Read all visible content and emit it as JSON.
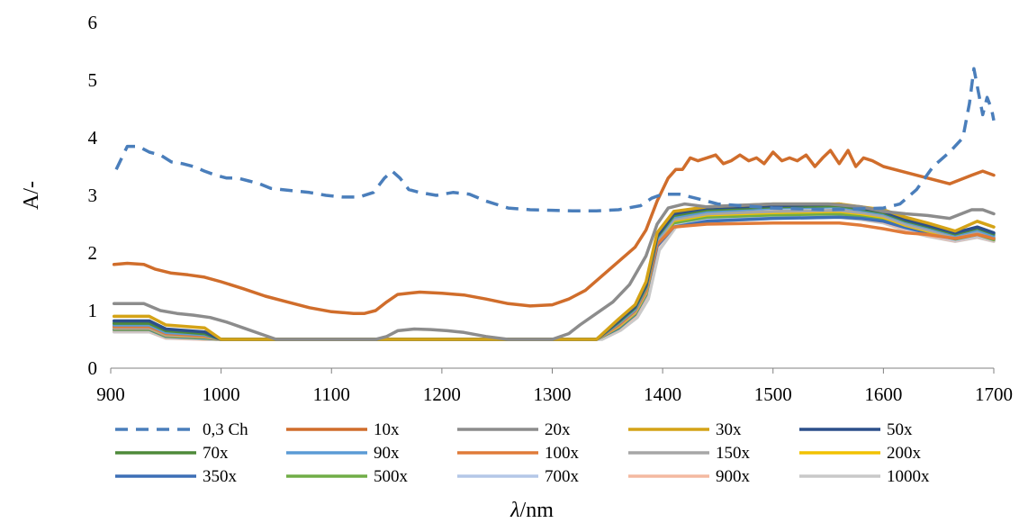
{
  "chart_data": {
    "type": "line",
    "title": "",
    "xlabel_var": "λ",
    "xlabel_unit": "/nm",
    "ylabel": "A/-",
    "xlim": [
      900,
      1700
    ],
    "ylim": [
      0,
      6
    ],
    "xticks": [
      900,
      1000,
      1100,
      1200,
      1300,
      1400,
      1500,
      1600,
      1700
    ],
    "yticks": [
      0,
      1,
      2,
      3,
      4,
      5,
      6
    ],
    "grid": false,
    "legend_position": "bottom",
    "series": [
      {
        "name": "0,3 Ch",
        "color": "#4a7ebb",
        "dash": true,
        "x": [
          905,
          915,
          925,
          935,
          945,
          955,
          965,
          975,
          985,
          995,
          1005,
          1015,
          1025,
          1035,
          1045,
          1055,
          1065,
          1080,
          1095,
          1110,
          1125,
          1138,
          1148,
          1155,
          1162,
          1170,
          1180,
          1195,
          1210,
          1225,
          1240,
          1260,
          1280,
          1300,
          1320,
          1340,
          1360,
          1380,
          1390,
          1400,
          1415,
          1430,
          1450,
          1500,
          1550,
          1600,
          1615,
          1630,
          1645,
          1660,
          1672,
          1678,
          1682,
          1686,
          1690,
          1694,
          1698,
          1700
        ],
        "y": [
          3.45,
          3.85,
          3.85,
          3.75,
          3.7,
          3.58,
          3.55,
          3.5,
          3.42,
          3.35,
          3.3,
          3.3,
          3.25,
          3.2,
          3.12,
          3.1,
          3.08,
          3.05,
          3.0,
          2.97,
          2.97,
          3.05,
          3.3,
          3.42,
          3.3,
          3.1,
          3.05,
          3.0,
          3.05,
          3.02,
          2.9,
          2.78,
          2.75,
          2.74,
          2.73,
          2.73,
          2.75,
          2.82,
          2.95,
          3.02,
          3.02,
          2.95,
          2.85,
          2.78,
          2.75,
          2.78,
          2.85,
          3.1,
          3.5,
          3.75,
          4.0,
          4.6,
          5.2,
          4.8,
          4.4,
          4.7,
          4.5,
          4.3
        ]
      },
      {
        "name": "10x",
        "color": "#d06d2b",
        "x": [
          903,
          915,
          930,
          940,
          955,
          970,
          985,
          1000,
          1020,
          1040,
          1060,
          1080,
          1100,
          1120,
          1130,
          1140,
          1150,
          1160,
          1170,
          1180,
          1200,
          1220,
          1240,
          1260,
          1280,
          1300,
          1315,
          1330,
          1345,
          1360,
          1375,
          1385,
          1395,
          1405,
          1412,
          1418,
          1425,
          1432,
          1440,
          1448,
          1455,
          1462,
          1470,
          1478,
          1485,
          1492,
          1500,
          1508,
          1515,
          1522,
          1530,
          1538,
          1545,
          1552,
          1560,
          1568,
          1575,
          1582,
          1590,
          1600,
          1620,
          1640,
          1660,
          1680,
          1690,
          1700
        ],
        "y": [
          1.8,
          1.82,
          1.8,
          1.72,
          1.65,
          1.62,
          1.58,
          1.5,
          1.38,
          1.25,
          1.15,
          1.05,
          0.98,
          0.95,
          0.95,
          1.0,
          1.15,
          1.28,
          1.3,
          1.32,
          1.3,
          1.27,
          1.2,
          1.12,
          1.08,
          1.1,
          1.2,
          1.35,
          1.6,
          1.85,
          2.1,
          2.4,
          2.9,
          3.3,
          3.45,
          3.45,
          3.65,
          3.6,
          3.65,
          3.7,
          3.55,
          3.6,
          3.7,
          3.6,
          3.65,
          3.55,
          3.75,
          3.6,
          3.65,
          3.6,
          3.7,
          3.5,
          3.65,
          3.78,
          3.55,
          3.78,
          3.5,
          3.65,
          3.6,
          3.5,
          3.4,
          3.3,
          3.2,
          3.35,
          3.42,
          3.35
        ]
      },
      {
        "name": "20x",
        "color": "#8c8c8c",
        "x": [
          903,
          915,
          930,
          945,
          960,
          975,
          990,
          1005,
          1020,
          1035,
          1050,
          1140,
          1150,
          1160,
          1175,
          1190,
          1205,
          1220,
          1240,
          1260,
          1300,
          1315,
          1325,
          1340,
          1355,
          1370,
          1385,
          1395,
          1405,
          1420,
          1440,
          1460,
          1500,
          1550,
          1580,
          1600,
          1620,
          1640,
          1660,
          1680,
          1690,
          1700
        ],
        "y": [
          1.12,
          1.12,
          1.12,
          1.0,
          0.95,
          0.92,
          0.88,
          0.8,
          0.7,
          0.6,
          0.5,
          0.5,
          0.55,
          0.65,
          0.68,
          0.67,
          0.65,
          0.62,
          0.55,
          0.5,
          0.5,
          0.6,
          0.75,
          0.95,
          1.15,
          1.45,
          1.95,
          2.5,
          2.78,
          2.85,
          2.8,
          2.82,
          2.85,
          2.85,
          2.8,
          2.72,
          2.68,
          2.65,
          2.6,
          2.75,
          2.75,
          2.68
        ]
      },
      {
        "name": "30x",
        "color": "#d4a317",
        "x": [
          903,
          935,
          950,
          985,
          1000,
          1340,
          1360,
          1375,
          1385,
          1395,
          1410,
          1440,
          1500,
          1560,
          1580,
          1600,
          1620,
          1640,
          1665,
          1685,
          1700
        ],
        "y": [
          0.9,
          0.9,
          0.75,
          0.7,
          0.5,
          0.5,
          0.85,
          1.1,
          1.5,
          2.35,
          2.72,
          2.8,
          2.85,
          2.85,
          2.8,
          2.75,
          2.62,
          2.52,
          2.38,
          2.55,
          2.45
        ]
      },
      {
        "name": "50x",
        "color": "#2c4f8a",
        "x": [
          903,
          935,
          950,
          985,
          1000,
          1340,
          1360,
          1375,
          1385,
          1395,
          1410,
          1440,
          1500,
          1560,
          1580,
          1600,
          1620,
          1640,
          1665,
          1685,
          1700
        ],
        "y": [
          0.82,
          0.82,
          0.68,
          0.63,
          0.5,
          0.5,
          0.82,
          1.07,
          1.45,
          2.3,
          2.68,
          2.78,
          2.82,
          2.85,
          2.78,
          2.72,
          2.58,
          2.48,
          2.35,
          2.45,
          2.35
        ]
      },
      {
        "name": "70x",
        "color": "#4e8a3a",
        "x": [
          903,
          935,
          950,
          985,
          1000,
          1340,
          1360,
          1375,
          1385,
          1395,
          1410,
          1440,
          1500,
          1560,
          1580,
          1600,
          1620,
          1640,
          1665,
          1685,
          1700
        ],
        "y": [
          0.78,
          0.78,
          0.65,
          0.6,
          0.5,
          0.5,
          0.8,
          1.05,
          1.42,
          2.28,
          2.65,
          2.75,
          2.8,
          2.82,
          2.76,
          2.7,
          2.56,
          2.46,
          2.33,
          2.43,
          2.33
        ]
      },
      {
        "name": "90x",
        "color": "#5b9bd5",
        "x": [
          903,
          935,
          950,
          985,
          1000,
          1340,
          1360,
          1375,
          1385,
          1395,
          1410,
          1440,
          1500,
          1560,
          1580,
          1600,
          1620,
          1640,
          1665,
          1685,
          1700
        ],
        "y": [
          0.75,
          0.75,
          0.62,
          0.58,
          0.5,
          0.5,
          0.78,
          1.02,
          1.4,
          2.25,
          2.62,
          2.72,
          2.78,
          2.8,
          2.74,
          2.68,
          2.54,
          2.44,
          2.31,
          2.4,
          2.3
        ]
      },
      {
        "name": "100x",
        "color": "#e07b39",
        "x": [
          903,
          935,
          950,
          985,
          1000,
          1340,
          1360,
          1375,
          1385,
          1395,
          1410,
          1440,
          1500,
          1560,
          1580,
          1600,
          1620,
          1640,
          1665,
          1685,
          1700
        ],
        "y": [
          0.72,
          0.72,
          0.6,
          0.56,
          0.5,
          0.5,
          0.75,
          1.0,
          1.35,
          2.15,
          2.45,
          2.5,
          2.52,
          2.52,
          2.48,
          2.42,
          2.35,
          2.32,
          2.25,
          2.32,
          2.25
        ]
      },
      {
        "name": "150x",
        "color": "#a6a6a6",
        "x": [
          903,
          935,
          950,
          985,
          1000,
          1340,
          1360,
          1375,
          1385,
          1395,
          1410,
          1440,
          1500,
          1560,
          1580,
          1600,
          1620,
          1640,
          1665,
          1685,
          1700
        ],
        "y": [
          0.7,
          0.7,
          0.58,
          0.55,
          0.5,
          0.5,
          0.74,
          0.98,
          1.33,
          2.2,
          2.58,
          2.68,
          2.72,
          2.74,
          2.7,
          2.64,
          2.5,
          2.4,
          2.28,
          2.36,
          2.27
        ]
      },
      {
        "name": "200x",
        "color": "#f2c200",
        "x": [
          903,
          935,
          950,
          985,
          1000,
          1340,
          1360,
          1375,
          1385,
          1395,
          1410,
          1440,
          1500,
          1560,
          1580,
          1600,
          1620,
          1640,
          1665,
          1685,
          1700
        ],
        "y": [
          0.69,
          0.69,
          0.57,
          0.54,
          0.5,
          0.5,
          0.72,
          0.96,
          1.3,
          2.18,
          2.56,
          2.66,
          2.7,
          2.72,
          2.68,
          2.62,
          2.48,
          2.38,
          2.27,
          2.35,
          2.26
        ]
      },
      {
        "name": "350x",
        "color": "#3d6fb6",
        "x": [
          903,
          935,
          950,
          985,
          1000,
          1340,
          1360,
          1375,
          1385,
          1395,
          1410,
          1440,
          1500,
          1560,
          1580,
          1600,
          1620,
          1640,
          1665,
          1685,
          1700
        ],
        "y": [
          0.68,
          0.68,
          0.56,
          0.53,
          0.5,
          0.5,
          0.7,
          0.94,
          1.28,
          2.12,
          2.45,
          2.55,
          2.6,
          2.62,
          2.6,
          2.55,
          2.44,
          2.35,
          2.25,
          2.33,
          2.25
        ]
      },
      {
        "name": "500x",
        "color": "#70ad47",
        "x": [
          903,
          935,
          950,
          985,
          1000,
          1340,
          1360,
          1375,
          1385,
          1395,
          1410,
          1440,
          1500,
          1560,
          1580,
          1600,
          1620,
          1640,
          1665,
          1685,
          1700
        ],
        "y": [
          0.67,
          0.67,
          0.55,
          0.52,
          0.5,
          0.5,
          0.69,
          0.93,
          1.27,
          2.15,
          2.52,
          2.62,
          2.66,
          2.68,
          2.64,
          2.58,
          2.45,
          2.35,
          2.24,
          2.32,
          2.23
        ]
      },
      {
        "name": "700x",
        "color": "#b4c7e7",
        "x": [
          903,
          935,
          950,
          985,
          1000,
          1340,
          1360,
          1375,
          1385,
          1395,
          1410,
          1440,
          1500,
          1560,
          1580,
          1600,
          1620,
          1640,
          1665,
          1685,
          1700
        ],
        "y": [
          0.66,
          0.66,
          0.54,
          0.51,
          0.5,
          0.5,
          0.68,
          0.92,
          1.25,
          2.13,
          2.5,
          2.6,
          2.64,
          2.66,
          2.62,
          2.56,
          2.43,
          2.33,
          2.22,
          2.3,
          2.22
        ]
      },
      {
        "name": "900x",
        "color": "#f4b9a0",
        "x": [
          903,
          935,
          950,
          985,
          1000,
          1340,
          1360,
          1375,
          1385,
          1395,
          1410,
          1440,
          1500,
          1560,
          1580,
          1600,
          1620,
          1640,
          1665,
          1685,
          1700
        ],
        "y": [
          0.65,
          0.65,
          0.53,
          0.5,
          0.5,
          0.5,
          0.67,
          0.9,
          1.23,
          2.1,
          2.48,
          2.58,
          2.62,
          2.64,
          2.6,
          2.54,
          2.41,
          2.31,
          2.21,
          2.29,
          2.21
        ]
      },
      {
        "name": "1000x",
        "color": "#c9c9c9",
        "x": [
          903,
          935,
          950,
          985,
          1000,
          1345,
          1362,
          1377,
          1387,
          1397,
          1412,
          1440,
          1500,
          1560,
          1580,
          1600,
          1620,
          1640,
          1665,
          1685,
          1700
        ],
        "y": [
          0.63,
          0.63,
          0.52,
          0.5,
          0.5,
          0.5,
          0.66,
          0.88,
          1.2,
          2.05,
          2.45,
          2.55,
          2.6,
          2.62,
          2.58,
          2.52,
          2.39,
          2.29,
          2.2,
          2.27,
          2.2
        ]
      }
    ]
  }
}
